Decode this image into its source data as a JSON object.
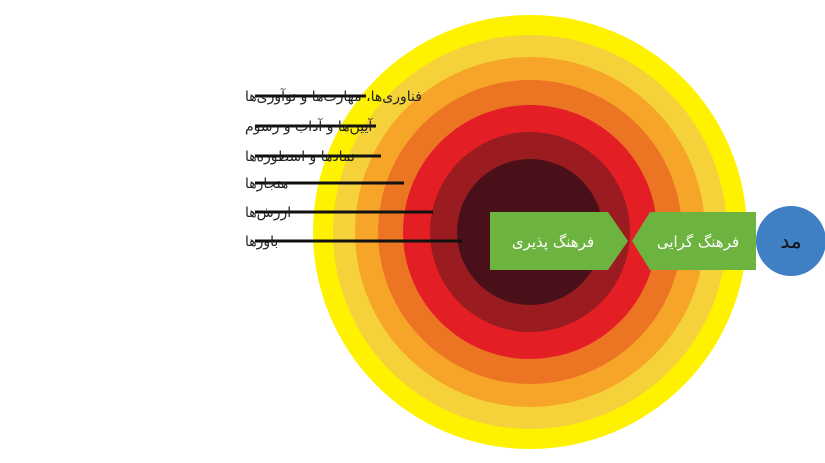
{
  "layers": [
    {
      "label": "فناوری‌ها، مهارت‌ها و نوآوری‌ها",
      "color": "#f6d23a"
    },
    {
      "label": "آیین‌ها و آداب و رسوم",
      "color": "#f7a529"
    },
    {
      "label": "نمادها و اسطوره‌ها",
      "color": "#ec7523"
    },
    {
      "label": "هنجارها",
      "color": "#e31e24"
    },
    {
      "label": "ارزش‌ها",
      "color": "#9b1c20"
    },
    {
      "label": "باورها",
      "color": "#4a1019"
    }
  ],
  "outer_ring_color": "#fff200",
  "line_color": "#111111",
  "arrows": {
    "acceptance": {
      "label": "فرهنگ پذیری",
      "color": "#6db33f"
    },
    "tendency": {
      "label": "فرهنگ گرایی",
      "color": "#6db33f"
    }
  },
  "mod": {
    "label": "مد",
    "color": "#3f7fc4"
  }
}
